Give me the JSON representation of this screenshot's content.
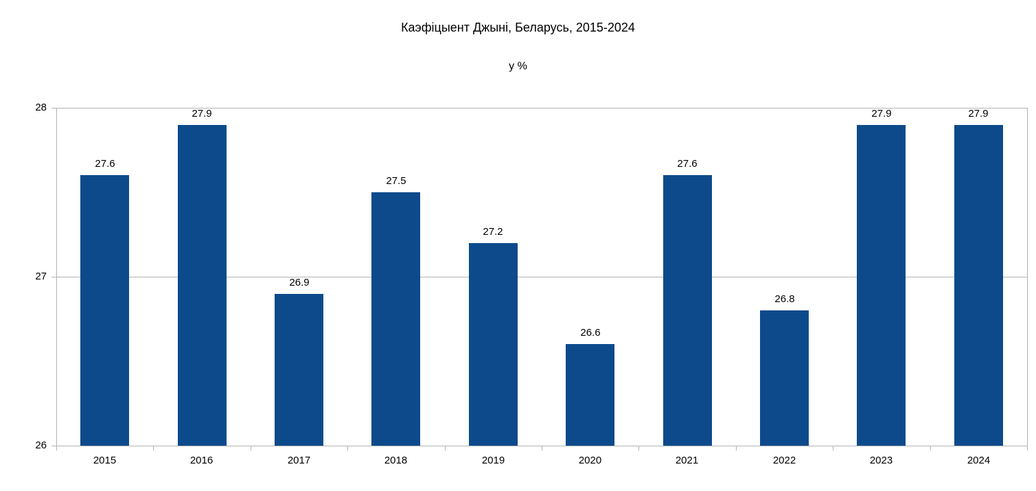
{
  "chart_data": {
    "type": "bar",
    "title": "Каэфіцыент Джыні, Беларусь, 2015-2024",
    "subtitle": "у %",
    "categories": [
      "2015",
      "2016",
      "2017",
      "2018",
      "2019",
      "2020",
      "2021",
      "2022",
      "2023",
      "2024"
    ],
    "values": [
      27.6,
      27.9,
      26.9,
      27.5,
      27.2,
      26.6,
      27.6,
      26.8,
      27.9,
      27.9
    ],
    "data_labels": [
      "27.6",
      "27.9",
      "26.9",
      "27.5",
      "27.2",
      "26.6",
      "27.6",
      "26.8",
      "27.9",
      "27.9"
    ],
    "xlabel": "",
    "ylabel": "",
    "ylim": [
      26,
      28
    ],
    "yticks": [
      "26",
      "27",
      "28"
    ],
    "grid": "horizontal",
    "legend": "none",
    "colors": {
      "bar": "#0d4a8b",
      "grid": "#b3b3b3",
      "axis": "#b3b3b3",
      "text": "#000000",
      "background": "#ffffff"
    }
  }
}
